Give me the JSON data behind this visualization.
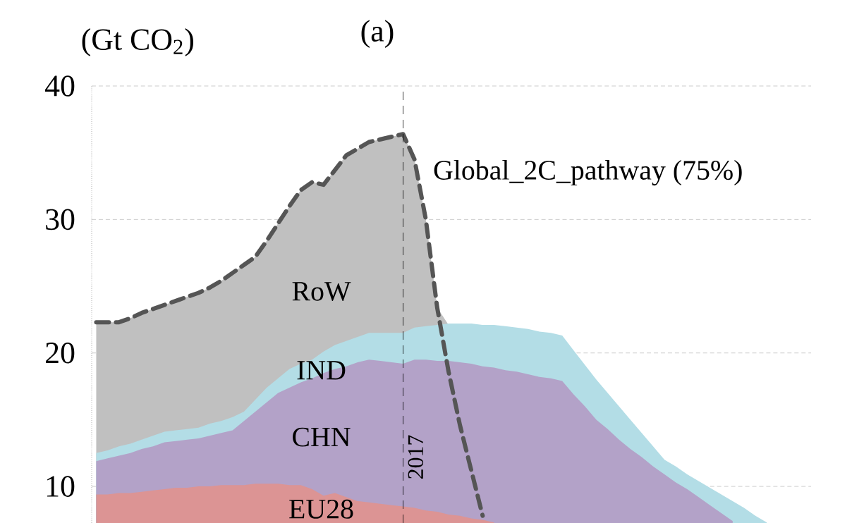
{
  "chart_data": {
    "type": "area",
    "title": "(a)",
    "ylabel": "(Gt CO$_{2}$)",
    "ylim": [
      7.26,
      40
    ],
    "yticks": [
      10,
      20,
      30,
      40
    ],
    "tick_labels": "y",
    "grid": "y",
    "categories": [
      null,
      null,
      null,
      null,
      null,
      null,
      null,
      null,
      null,
      null,
      null,
      null,
      null,
      null,
      null,
      null,
      null,
      null,
      null,
      null,
      null,
      null,
      null,
      null,
      null,
      null,
      null,
      null,
      null,
      null,
      null,
      null,
      null,
      null,
      null,
      null,
      null,
      null,
      null,
      null,
      null,
      null,
      null,
      null,
      null,
      null,
      null,
      null,
      null,
      null,
      null,
      null,
      null,
      null,
      null,
      null,
      null,
      null,
      null,
      null
    ],
    "series": [
      {
        "name": "RoW",
        "color": "#c0c0c0",
        "values": [
          22.3,
          22.3,
          22.3,
          22.6,
          23.0,
          23.3,
          23.6,
          23.9,
          24.2,
          24.5,
          24.9,
          25.4,
          26.0,
          26.6,
          27.2,
          28.4,
          29.7,
          31.0,
          32.2,
          32.8,
          32.6,
          33.7,
          34.8,
          35.3,
          35.8,
          36.0,
          36.2,
          36.4,
          34.5,
          30.0,
          23.4,
          22.1,
          null,
          null,
          null,
          null,
          null,
          null,
          null,
          null,
          null,
          null,
          null,
          null,
          null,
          null,
          null,
          null,
          null,
          null,
          null,
          null,
          null,
          null,
          null,
          null,
          null,
          null,
          null,
          null
        ]
      },
      {
        "name": "IND",
        "color": "#b3dde6",
        "values": [
          12.5,
          12.7,
          13.0,
          13.2,
          13.5,
          13.8,
          14.1,
          14.2,
          14.3,
          14.4,
          14.7,
          14.9,
          15.2,
          15.6,
          16.5,
          17.4,
          18.1,
          18.8,
          19.2,
          19.5,
          20.1,
          20.6,
          20.9,
          21.2,
          21.5,
          21.5,
          21.5,
          21.5,
          21.9,
          22.0,
          22.1,
          22.2,
          22.2,
          22.2,
          22.1,
          22.1,
          22.0,
          21.9,
          21.8,
          21.6,
          21.5,
          21.3,
          20.2,
          19.1,
          18.0,
          17.0,
          16.0,
          15.0,
          14.0,
          13.0,
          12.0,
          11.5,
          10.9,
          10.4,
          9.9,
          9.4,
          8.9,
          8.4,
          7.8,
          7.3
        ]
      },
      {
        "name": "CHN",
        "color": "#b3a2c8",
        "values": [
          11.9,
          12.1,
          12.3,
          12.5,
          12.8,
          13.0,
          13.3,
          13.4,
          13.5,
          13.6,
          13.8,
          14.0,
          14.2,
          14.9,
          15.6,
          16.3,
          17.0,
          17.4,
          17.8,
          18.1,
          18.5,
          18.8,
          19.0,
          19.3,
          19.5,
          19.4,
          19.3,
          19.2,
          19.5,
          19.5,
          19.4,
          19.4,
          19.3,
          19.2,
          19.0,
          18.9,
          18.7,
          18.6,
          18.4,
          18.2,
          18.1,
          17.9,
          16.9,
          16.0,
          15.0,
          14.3,
          13.5,
          12.8,
          12.2,
          11.5,
          10.9,
          10.3,
          9.8,
          9.2,
          8.6,
          8.0,
          7.4,
          null,
          null,
          null
        ]
      },
      {
        "name": "EU28",
        "color": "#dc9494",
        "values": [
          9.4,
          9.4,
          9.5,
          9.5,
          9.6,
          9.7,
          9.8,
          9.9,
          9.9,
          10.0,
          10.0,
          10.1,
          10.1,
          10.1,
          10.2,
          10.2,
          10.2,
          10.1,
          10.1,
          9.8,
          9.3,
          9.5,
          9.2,
          8.9,
          8.8,
          8.7,
          8.6,
          8.5,
          8.4,
          8.2,
          8.1,
          7.9,
          7.8,
          7.6,
          7.5,
          7.3,
          null,
          null,
          null,
          null,
          null,
          null,
          null,
          null,
          null,
          null,
          null,
          null,
          null,
          null,
          null,
          null,
          null,
          null,
          null,
          null,
          null,
          null,
          null,
          null
        ]
      },
      {
        "name": "Global_2C_pathway (75%)",
        "type": "line",
        "line_style": "dashed",
        "color": "#555555",
        "values": [
          22.3,
          22.3,
          22.3,
          22.6,
          23.0,
          23.3,
          23.6,
          23.9,
          24.2,
          24.5,
          24.9,
          25.4,
          26.0,
          26.6,
          27.2,
          28.4,
          29.7,
          31.0,
          32.2,
          32.8,
          32.6,
          33.7,
          34.8,
          35.3,
          35.8,
          36.0,
          36.2,
          36.4,
          34.5,
          30.0,
          23.4,
          18.6,
          14.6,
          11.2,
          7.8,
          null,
          null,
          null,
          null,
          null,
          null,
          null,
          null,
          null,
          null,
          null,
          null,
          null,
          null,
          null,
          null,
          null,
          null,
          null,
          null,
          null,
          null,
          null,
          null,
          null
        ]
      }
    ],
    "annotations": [
      "2017"
    ]
  }
}
